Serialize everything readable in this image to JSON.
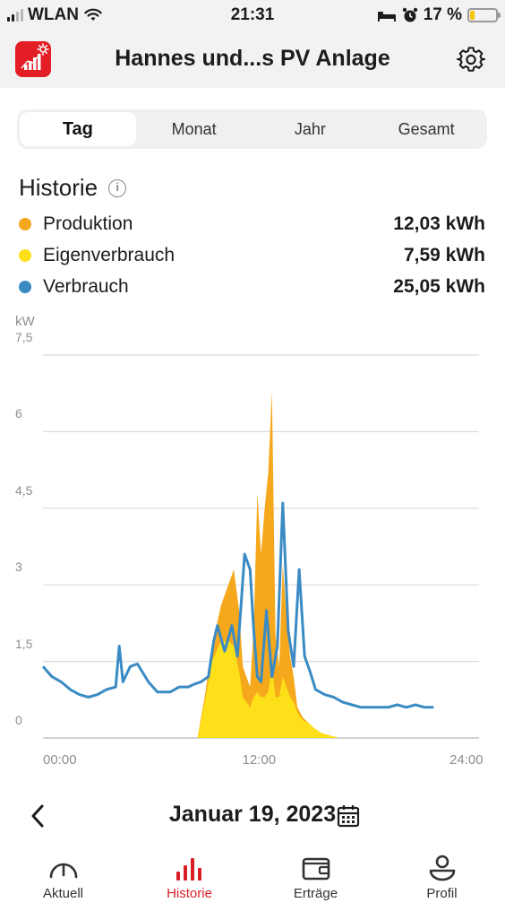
{
  "status_bar": {
    "carrier": "WLAN",
    "time": "21:31",
    "battery": "17 %",
    "battery_level": 0.17
  },
  "header": {
    "title": "Hannes und...s PV Anlage"
  },
  "segments": [
    {
      "label": "Tag",
      "active": true
    },
    {
      "label": "Monat",
      "active": false
    },
    {
      "label": "Jahr",
      "active": false
    },
    {
      "label": "Gesamt",
      "active": false
    }
  ],
  "history": {
    "title": "Historie",
    "legend": [
      {
        "label": "Produktion",
        "value": "12,03 kWh",
        "color": "#f5a81c"
      },
      {
        "label": "Eigenverbrauch",
        "value": "7,59 kWh",
        "color": "#fde01a"
      },
      {
        "label": "Verbrauch",
        "value": "25,05 kWh",
        "color": "#3a8ac4"
      }
    ]
  },
  "chart_data": {
    "type": "area",
    "ylabel": "kW",
    "ylim": [
      0,
      7.5
    ],
    "yticks": [
      "7,5",
      "6",
      "4,5",
      "3",
      "1,5",
      "0"
    ],
    "xlim": [
      0,
      24
    ],
    "xticks": [
      "00:00",
      "12:00",
      "24:00"
    ],
    "series": [
      {
        "name": "Produktion",
        "color": "#f5a81c",
        "x": [
          0,
          8.5,
          8.9,
          9.3,
          9.8,
          10.2,
          10.5,
          10.8,
          11.0,
          11.2,
          11.4,
          11.6,
          11.8,
          12.0,
          12.2,
          12.4,
          12.6,
          12.8,
          13.0,
          13.2,
          13.4,
          13.6,
          13.8,
          14.0,
          14.3,
          14.6,
          14.9,
          15.3,
          15.8,
          16.3,
          17.0,
          24
        ],
        "y": [
          0,
          0,
          0.8,
          1.8,
          2.6,
          3.0,
          3.3,
          2.5,
          1.4,
          1.2,
          1.0,
          2.2,
          4.8,
          3.6,
          4.5,
          5.2,
          6.8,
          2.0,
          1.4,
          3.4,
          2.4,
          1.6,
          1.2,
          0.6,
          0.4,
          0.3,
          0.2,
          0.1,
          0.05,
          0,
          0,
          0
        ]
      },
      {
        "name": "Eigenverbrauch",
        "color": "#fde01a",
        "x": [
          0,
          8.5,
          8.9,
          9.3,
          9.8,
          10.2,
          10.5,
          10.8,
          11.0,
          11.2,
          11.4,
          11.6,
          11.8,
          12.0,
          12.2,
          12.4,
          12.6,
          12.8,
          13.0,
          13.2,
          13.4,
          13.6,
          13.8,
          14.0,
          14.3,
          14.6,
          14.9,
          15.3,
          15.8,
          16.3,
          17.0,
          24
        ],
        "y": [
          0,
          0,
          0.7,
          1.5,
          1.9,
          1.9,
          1.8,
          1.3,
          0.8,
          0.7,
          0.6,
          0.8,
          0.9,
          0.8,
          0.8,
          0.9,
          1.4,
          0.8,
          0.8,
          1.2,
          1.0,
          0.8,
          0.7,
          0.5,
          0.35,
          0.3,
          0.2,
          0.1,
          0.05,
          0,
          0,
          0
        ]
      },
      {
        "name": "Verbrauch",
        "color": "#3a8ac4",
        "x": [
          0,
          0.5,
          1.0,
          1.5,
          2.0,
          2.5,
          3.0,
          3.5,
          4.0,
          4.2,
          4.4,
          4.8,
          5.2,
          5.8,
          6.3,
          7.0,
          7.5,
          8.0,
          8.3,
          8.7,
          9.1,
          9.4,
          9.6,
          10.0,
          10.4,
          10.7,
          10.9,
          11.1,
          11.4,
          11.6,
          11.8,
          12.0,
          12.3,
          12.6,
          12.9,
          13.2,
          13.5,
          13.8,
          14.1,
          14.4,
          14.7,
          15.0,
          15.5,
          16.0,
          16.5,
          17.0,
          17.5,
          18.0,
          18.5,
          19.0,
          19.5,
          20.0,
          20.5,
          21.0,
          21.5
        ],
        "y": [
          1.4,
          1.2,
          1.1,
          0.95,
          0.85,
          0.8,
          0.85,
          0.95,
          1.0,
          1.8,
          1.1,
          1.4,
          1.45,
          1.1,
          0.9,
          0.9,
          1.0,
          1.0,
          1.05,
          1.1,
          1.2,
          1.9,
          2.2,
          1.7,
          2.2,
          1.6,
          2.6,
          3.6,
          3.3,
          2.1,
          1.2,
          1.1,
          2.5,
          1.2,
          1.8,
          4.6,
          2.1,
          1.4,
          3.3,
          1.6,
          1.3,
          0.95,
          0.85,
          0.8,
          0.7,
          0.65,
          0.6,
          0.6,
          0.6,
          0.6,
          0.65,
          0.6,
          0.65,
          0.6,
          0.6
        ]
      }
    ]
  },
  "date_nav": {
    "date": "Januar 19, 2023"
  },
  "bottom_nav": [
    {
      "label": "Aktuell",
      "icon": "gauge-icon",
      "active": false
    },
    {
      "label": "Historie",
      "icon": "bar-chart-icon",
      "active": true
    },
    {
      "label": "Erträge",
      "icon": "wallet-icon",
      "active": false
    },
    {
      "label": "Profil",
      "icon": "profile-icon",
      "active": false
    }
  ]
}
